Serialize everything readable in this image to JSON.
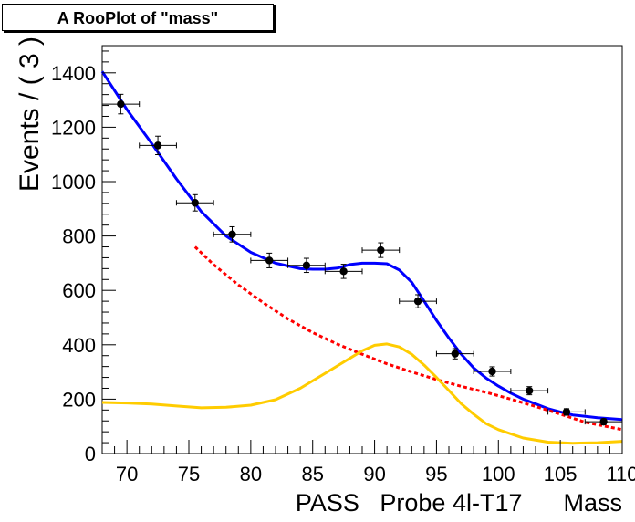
{
  "chart_data": {
    "type": "line",
    "title": "A RooPlot of \"mass\"",
    "xlabel": "PASS   Probe 4l-T17      Mass",
    "ylabel": "Events / ( 3 )",
    "xlim": [
      68,
      110
    ],
    "ylim": [
      0,
      1500
    ],
    "xticks": [
      70,
      75,
      80,
      85,
      90,
      95,
      100,
      105,
      110
    ],
    "yticks": [
      0,
      200,
      400,
      600,
      800,
      1000,
      1200,
      1400
    ],
    "x_error": 1.5,
    "points": {
      "x": [
        69.5,
        72.5,
        75.5,
        78.5,
        81.5,
        84.5,
        87.5,
        90.5,
        93.5,
        96.5,
        99.5,
        102.5,
        105.5,
        108.5
      ],
      "y": [
        1285,
        1133,
        922,
        806,
        710,
        692,
        670,
        748,
        560,
        367,
        302,
        231,
        153,
        117
      ],
      "err": [
        36,
        34,
        30,
        28,
        27,
        26,
        26,
        27,
        24,
        19,
        17,
        15,
        12,
        11
      ],
      "color": "#000000"
    },
    "series": [
      {
        "style": "solid",
        "color": "#0000ff",
        "x": [
          68,
          70,
          72,
          74,
          76,
          78,
          80,
          82,
          84,
          85,
          86,
          87,
          88,
          89,
          90,
          91,
          92,
          93,
          94,
          95,
          96,
          97,
          98,
          99,
          100,
          101,
          102,
          103,
          104,
          105,
          106,
          108,
          110
        ],
        "y": [
          1405,
          1265,
          1140,
          1010,
          890,
          800,
          740,
          700,
          680,
          678,
          678,
          682,
          695,
          700,
          700,
          698,
          675,
          630,
          560,
          490,
          425,
          365,
          315,
          278,
          248,
          222,
          200,
          183,
          165,
          153,
          142,
          132,
          125
        ]
      },
      {
        "style": "dashed",
        "color": "#ff0000",
        "x": [
          75.5,
          77,
          79,
          81,
          83,
          85,
          87,
          89,
          91,
          93,
          95,
          97,
          99,
          101,
          103,
          105,
          107,
          110
        ],
        "y": [
          760,
          695,
          620,
          555,
          495,
          445,
          402,
          365,
          330,
          300,
          272,
          247,
          225,
          200,
          173,
          145,
          115,
          88
        ]
      },
      {
        "style": "solid",
        "color": "#ffcc00",
        "x": [
          68,
          70,
          72,
          74,
          76,
          78,
          80,
          82,
          84,
          86,
          88,
          89,
          90,
          91,
          92,
          93,
          94,
          95,
          96,
          97,
          98,
          99,
          100,
          102,
          104,
          106,
          108,
          110
        ],
        "y": [
          188,
          186,
          182,
          175,
          168,
          170,
          178,
          198,
          240,
          295,
          350,
          378,
          398,
          403,
          392,
          365,
          325,
          280,
          232,
          183,
          145,
          110,
          88,
          57,
          42,
          38,
          40,
          45
        ]
      }
    ]
  }
}
